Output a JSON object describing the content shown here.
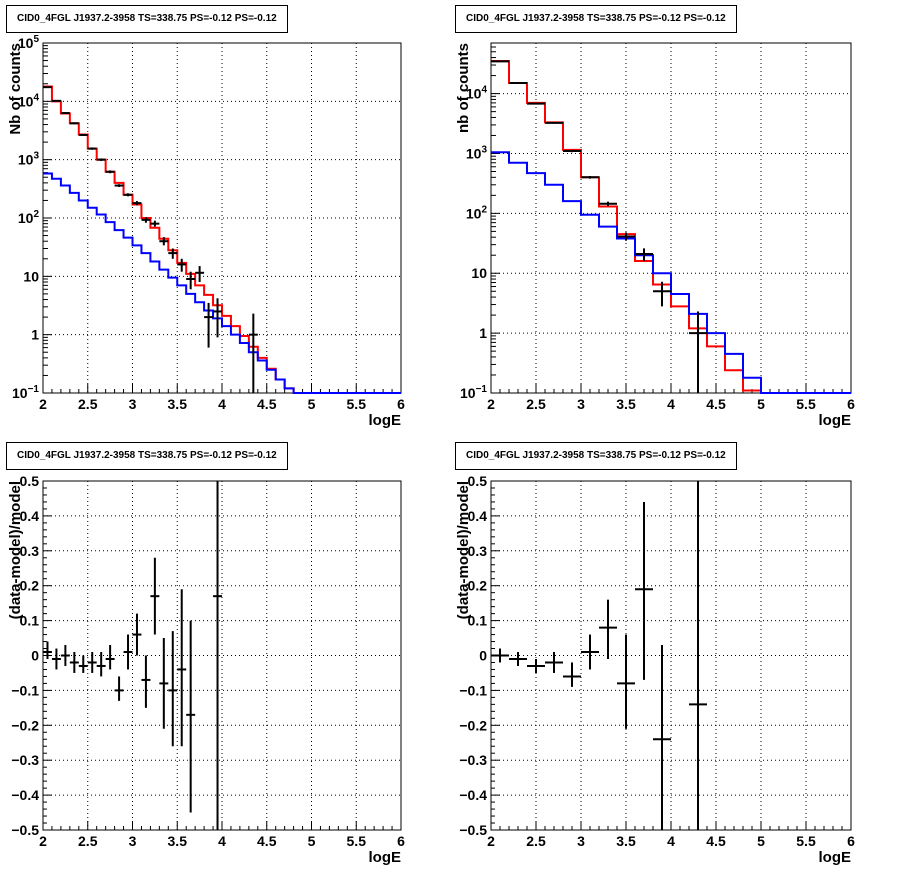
{
  "chart_data": [
    {
      "id": "counts-full",
      "type": "line",
      "title": "CID0_4FGL J1937.2-3958 TS=338.75 PS=-0.12 PS=-0.12",
      "xlabel": "logE",
      "ylabel": "Nb of counts",
      "xlim": [
        2,
        6
      ],
      "ylim": [
        0.1,
        100000
      ],
      "yscale": "log",
      "grid": true,
      "xticks": [
        "2",
        "2.5",
        "3",
        "3.5",
        "4",
        "4.5",
        "5",
        "5.5",
        "6"
      ],
      "yticks": [
        "10^-1",
        "1",
        "10",
        "10^2",
        "10^3",
        "10^4",
        "10^5"
      ],
      "series": [
        {
          "color": "#ff0000",
          "style": "step",
          "bin_edges": [
            2.0,
            2.1,
            2.2,
            2.3,
            2.4,
            2.5,
            2.6,
            2.7,
            2.8,
            2.9,
            3.0,
            3.1,
            3.2,
            3.3,
            3.4,
            3.5,
            3.6,
            3.7,
            3.8,
            3.9,
            4.0,
            4.1,
            4.2,
            4.3,
            4.4,
            4.5,
            4.6,
            4.7,
            4.8,
            4.9,
            5.0,
            5.1,
            5.2,
            5.3,
            5.4,
            5.5,
            5.6,
            5.7,
            5.8,
            5.9,
            6.0
          ],
          "values": [
            18000,
            10000,
            6200,
            4200,
            2700,
            1550,
            1000,
            620,
            400,
            250,
            170,
            100,
            68,
            44,
            28,
            17,
            11,
            7,
            4.8,
            3.2,
            2.1,
            1.4,
            0.95,
            0.62,
            0.4,
            0.26,
            0.17,
            0.12,
            0.1,
            0.1,
            0.1,
            0.1,
            0.1,
            0.1,
            0.1,
            0.1,
            0.1,
            0.1,
            0.1,
            0.1
          ]
        },
        {
          "color": "#0000ff",
          "style": "step",
          "bin_edges": [
            2.0,
            2.1,
            2.2,
            2.3,
            2.4,
            2.5,
            2.6,
            2.7,
            2.8,
            2.9,
            3.0,
            3.1,
            3.2,
            3.3,
            3.4,
            3.5,
            3.6,
            3.7,
            3.8,
            3.9,
            4.0,
            4.1,
            4.2,
            4.3,
            4.4,
            4.5,
            4.6,
            4.7,
            4.8,
            4.9,
            5.0,
            5.1,
            5.2,
            5.3,
            5.4,
            5.5,
            5.6,
            5.7,
            5.8,
            5.9,
            6.0
          ],
          "values": [
            580,
            470,
            360,
            270,
            200,
            150,
            115,
            85,
            62,
            46,
            34,
            25,
            18,
            13,
            9.5,
            7,
            5,
            3.6,
            2.6,
            1.9,
            1.4,
            1.0,
            0.72,
            0.5,
            0.36,
            0.25,
            0.17,
            0.12,
            0.1,
            0.1,
            0.1,
            0.1,
            0.1,
            0.1,
            0.1,
            0.1,
            0.1,
            0.1,
            0.1,
            0.1
          ]
        },
        {
          "color": "#000000",
          "style": "errorbar",
          "points": [
            {
              "x": 2.05,
              "y": 17500,
              "xerr": 0.05,
              "ylo": 17000,
              "yhi": 18000
            },
            {
              "x": 2.15,
              "y": 10200,
              "xerr": 0.05,
              "ylo": 9900,
              "yhi": 10500
            },
            {
              "x": 2.25,
              "y": 6300,
              "xerr": 0.05,
              "ylo": 6100,
              "yhi": 6500
            },
            {
              "x": 2.35,
              "y": 4200,
              "xerr": 0.05,
              "ylo": 4050,
              "yhi": 4350
            },
            {
              "x": 2.45,
              "y": 2650,
              "xerr": 0.05,
              "ylo": 2550,
              "yhi": 2750
            },
            {
              "x": 2.55,
              "y": 1550,
              "xerr": 0.05,
              "ylo": 1480,
              "yhi": 1620
            },
            {
              "x": 2.65,
              "y": 1000,
              "xerr": 0.05,
              "ylo": 950,
              "yhi": 1050
            },
            {
              "x": 2.75,
              "y": 620,
              "xerr": 0.05,
              "ylo": 585,
              "yhi": 655
            },
            {
              "x": 2.85,
              "y": 360,
              "xerr": 0.05,
              "ylo": 340,
              "yhi": 380
            },
            {
              "x": 2.95,
              "y": 250,
              "xerr": 0.05,
              "ylo": 235,
              "yhi": 265
            },
            {
              "x": 3.05,
              "y": 180,
              "xerr": 0.05,
              "ylo": 165,
              "yhi": 195
            },
            {
              "x": 3.15,
              "y": 93,
              "xerr": 0.05,
              "ylo": 83,
              "yhi": 103
            },
            {
              "x": 3.25,
              "y": 80,
              "xerr": 0.05,
              "ylo": 71,
              "yhi": 90
            },
            {
              "x": 3.35,
              "y": 40,
              "xerr": 0.05,
              "ylo": 34,
              "yhi": 47
            },
            {
              "x": 3.45,
              "y": 25,
              "xerr": 0.05,
              "ylo": 20,
              "yhi": 30
            },
            {
              "x": 3.55,
              "y": 16,
              "xerr": 0.05,
              "ylo": 12,
              "yhi": 20
            },
            {
              "x": 3.65,
              "y": 9,
              "xerr": 0.05,
              "ylo": 6,
              "yhi": 12
            },
            {
              "x": 3.75,
              "y": 11.5,
              "xerr": 0.05,
              "ylo": 8,
              "yhi": 15
            },
            {
              "x": 3.85,
              "y": 2,
              "xerr": 0.05,
              "ylo": 0.6,
              "yhi": 3.5
            },
            {
              "x": 3.95,
              "y": 2.5,
              "xerr": 0.05,
              "ylo": 0.9,
              "yhi": 4.2
            },
            {
              "x": 4.35,
              "y": 1,
              "xerr": 0.05,
              "ylo": 0.1,
              "yhi": 2.3
            }
          ]
        }
      ]
    },
    {
      "id": "counts-coarse",
      "type": "line",
      "title": "CID0_4FGL J1937.2-3958 TS=338.75 PS=-0.12 PS=-0.12",
      "xlabel": "logE",
      "ylabel": "nb of counts",
      "xlim": [
        2,
        6
      ],
      "ylim": [
        0.1,
        70000
      ],
      "yscale": "log",
      "grid": true,
      "xticks": [
        "2",
        "2.5",
        "3",
        "3.5",
        "4",
        "4.5",
        "5",
        "5.5",
        "6"
      ],
      "yticks": [
        "10^-1",
        "1",
        "10",
        "10^2",
        "10^3",
        "10^4"
      ],
      "series": [
        {
          "color": "#ff0000",
          "style": "step",
          "bin_edges": [
            2.0,
            2.2,
            2.4,
            2.6,
            2.8,
            3.0,
            3.2,
            3.4,
            3.6,
            3.8,
            4.0,
            4.2,
            4.4,
            4.6,
            4.8,
            5.0,
            5.2,
            5.4,
            5.6,
            5.8,
            6.0
          ],
          "values": [
            35000,
            15000,
            7000,
            3300,
            1150,
            400,
            130,
            45,
            16,
            6.5,
            2.8,
            1.2,
            0.6,
            0.24,
            0.11,
            0.1,
            0.1,
            0.1,
            0.1,
            0.1
          ]
        },
        {
          "color": "#0000ff",
          "style": "step",
          "bin_edges": [
            2.0,
            2.2,
            2.4,
            2.6,
            2.8,
            3.0,
            3.2,
            3.4,
            3.6,
            3.8,
            4.0,
            4.2,
            4.4,
            4.6,
            4.8,
            5.0,
            5.2,
            5.4,
            5.6,
            5.8,
            6.0
          ],
          "values": [
            1050,
            700,
            470,
            300,
            160,
            95,
            60,
            38,
            20,
            10,
            4.5,
            2.1,
            1.0,
            0.45,
            0.18,
            0.1,
            0.1,
            0.1,
            0.1,
            0.1
          ]
        },
        {
          "color": "#000000",
          "style": "errorbar",
          "points": [
            {
              "x": 2.1,
              "y": 34500,
              "xerr": 0.1,
              "ylo": 34000,
              "yhi": 35000
            },
            {
              "x": 2.3,
              "y": 15000,
              "xerr": 0.1,
              "ylo": 14700,
              "yhi": 15300
            },
            {
              "x": 2.5,
              "y": 6800,
              "xerr": 0.1,
              "ylo": 6600,
              "yhi": 7000
            },
            {
              "x": 2.7,
              "y": 3250,
              "xerr": 0.1,
              "ylo": 3150,
              "yhi": 3350
            },
            {
              "x": 2.9,
              "y": 1100,
              "xerr": 0.1,
              "ylo": 1050,
              "yhi": 1150
            },
            {
              "x": 3.1,
              "y": 400,
              "xerr": 0.1,
              "ylo": 380,
              "yhi": 420
            },
            {
              "x": 3.3,
              "y": 145,
              "xerr": 0.1,
              "ylo": 133,
              "yhi": 157
            },
            {
              "x": 3.5,
              "y": 41,
              "xerr": 0.1,
              "ylo": 35,
              "yhi": 48
            },
            {
              "x": 3.7,
              "y": 21,
              "xerr": 0.1,
              "ylo": 16,
              "yhi": 26
            },
            {
              "x": 3.9,
              "y": 5,
              "xerr": 0.1,
              "ylo": 2.8,
              "yhi": 7.2
            },
            {
              "x": 4.3,
              "y": 1,
              "xerr": 0.1,
              "ylo": 0.1,
              "yhi": 2.3
            }
          ]
        }
      ]
    },
    {
      "id": "residuals-full",
      "type": "scatter",
      "title": "CID0_4FGL J1937.2-3958 TS=338.75 PS=-0.12 PS=-0.12",
      "xlabel": "logE",
      "ylabel": "(data-model)/model",
      "xlim": [
        2,
        6
      ],
      "ylim": [
        -0.5,
        0.5
      ],
      "grid": true,
      "xticks": [
        "2",
        "2.5",
        "3",
        "3.5",
        "4",
        "4.5",
        "5",
        "5.5",
        "6"
      ],
      "yticks": [
        "−0.5",
        "−0.4",
        "−0.3",
        "−0.2",
        "−0.1",
        "0",
        "0.1",
        "0.2",
        "0.3",
        "0.4",
        "0.5"
      ],
      "series": [
        {
          "color": "#000000",
          "style": "errorbar",
          "points": [
            {
              "x": 2.05,
              "y": 0.01,
              "xerr": 0.05,
              "ylo": -0.01,
              "yhi": 0.04
            },
            {
              "x": 2.15,
              "y": -0.01,
              "xerr": 0.05,
              "ylo": -0.04,
              "yhi": 0.02
            },
            {
              "x": 2.25,
              "y": 0.0,
              "xerr": 0.05,
              "ylo": -0.03,
              "yhi": 0.03
            },
            {
              "x": 2.35,
              "y": -0.02,
              "xerr": 0.05,
              "ylo": -0.05,
              "yhi": 0.01
            },
            {
              "x": 2.45,
              "y": -0.03,
              "xerr": 0.05,
              "ylo": -0.05,
              "yhi": 0.0
            },
            {
              "x": 2.55,
              "y": -0.02,
              "xerr": 0.05,
              "ylo": -0.05,
              "yhi": 0.01
            },
            {
              "x": 2.65,
              "y": -0.03,
              "xerr": 0.05,
              "ylo": -0.06,
              "yhi": 0.01
            },
            {
              "x": 2.75,
              "y": -0.01,
              "xerr": 0.05,
              "ylo": -0.04,
              "yhi": 0.03
            },
            {
              "x": 2.85,
              "y": -0.1,
              "xerr": 0.05,
              "ylo": -0.13,
              "yhi": -0.06
            },
            {
              "x": 2.95,
              "y": 0.01,
              "xerr": 0.05,
              "ylo": -0.04,
              "yhi": 0.06
            },
            {
              "x": 3.05,
              "y": 0.06,
              "xerr": 0.05,
              "ylo": 0.0,
              "yhi": 0.12
            },
            {
              "x": 3.15,
              "y": -0.07,
              "xerr": 0.05,
              "ylo": -0.15,
              "yhi": 0.0
            },
            {
              "x": 3.25,
              "y": 0.17,
              "xerr": 0.05,
              "ylo": 0.06,
              "yhi": 0.28
            },
            {
              "x": 3.35,
              "y": -0.08,
              "xerr": 0.05,
              "ylo": -0.21,
              "yhi": 0.05
            },
            {
              "x": 3.45,
              "y": -0.1,
              "xerr": 0.05,
              "ylo": -0.26,
              "yhi": 0.07
            },
            {
              "x": 3.55,
              "y": -0.04,
              "xerr": 0.05,
              "ylo": -0.26,
              "yhi": 0.19
            },
            {
              "x": 3.65,
              "y": -0.17,
              "xerr": 0.05,
              "ylo": -0.45,
              "yhi": 0.1
            },
            {
              "x": 3.95,
              "y": 0.17,
              "xerr": 0.05,
              "ylo": -0.5,
              "yhi": 0.5
            }
          ]
        }
      ]
    },
    {
      "id": "residuals-coarse",
      "type": "scatter",
      "title": "CID0_4FGL J1937.2-3958 TS=338.75 PS=-0.12 PS=-0.12",
      "xlabel": "logE",
      "ylabel": "(data-model)/model",
      "xlim": [
        2,
        6
      ],
      "ylim": [
        -0.5,
        0.5
      ],
      "grid": true,
      "xticks": [
        "2",
        "2.5",
        "3",
        "3.5",
        "4",
        "4.5",
        "5",
        "5.5",
        "6"
      ],
      "yticks": [
        "−0.5",
        "−0.4",
        "−0.3",
        "−0.2",
        "−0.1",
        "0",
        "0.1",
        "0.2",
        "0.3",
        "0.4",
        "0.5"
      ],
      "series": [
        {
          "color": "#000000",
          "style": "errorbar",
          "points": [
            {
              "x": 2.1,
              "y": 0.0,
              "xerr": 0.1,
              "ylo": -0.02,
              "yhi": 0.02
            },
            {
              "x": 2.3,
              "y": -0.01,
              "xerr": 0.1,
              "ylo": -0.03,
              "yhi": 0.01
            },
            {
              "x": 2.5,
              "y": -0.03,
              "xerr": 0.1,
              "ylo": -0.05,
              "yhi": -0.01
            },
            {
              "x": 2.7,
              "y": -0.02,
              "xerr": 0.1,
              "ylo": -0.05,
              "yhi": 0.01
            },
            {
              "x": 2.9,
              "y": -0.06,
              "xerr": 0.1,
              "ylo": -0.09,
              "yhi": -0.02
            },
            {
              "x": 3.1,
              "y": 0.01,
              "xerr": 0.1,
              "ylo": -0.04,
              "yhi": 0.06
            },
            {
              "x": 3.3,
              "y": 0.08,
              "xerr": 0.1,
              "ylo": -0.01,
              "yhi": 0.16
            },
            {
              "x": 3.5,
              "y": -0.08,
              "xerr": 0.1,
              "ylo": -0.21,
              "yhi": 0.06
            },
            {
              "x": 3.7,
              "y": 0.19,
              "xerr": 0.1,
              "ylo": -0.07,
              "yhi": 0.44
            },
            {
              "x": 3.9,
              "y": -0.24,
              "xerr": 0.1,
              "ylo": -0.5,
              "yhi": 0.03
            },
            {
              "x": 4.3,
              "y": -0.14,
              "xerr": 0.1,
              "ylo": -0.5,
              "yhi": 0.5
            }
          ]
        }
      ]
    }
  ]
}
